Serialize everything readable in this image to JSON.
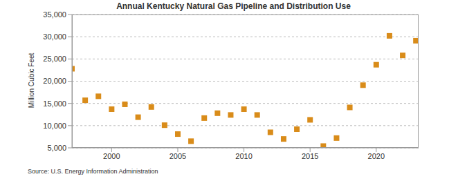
{
  "chart_data": {
    "type": "scatter",
    "title": "Annual Kentucky Natural Gas Pipeline and Distribution Use",
    "y_label": "Million Cubic Feet",
    "source": "Source: U.S. Energy Information Administration",
    "x": [
      1997,
      1998,
      1999,
      2000,
      2001,
      2002,
      2003,
      2004,
      2005,
      2006,
      2007,
      2008,
      2009,
      2010,
      2011,
      2012,
      2013,
      2014,
      2015,
      2016,
      2017,
      2018,
      2019,
      2020,
      2021,
      2022,
      2023
    ],
    "values": [
      22800,
      15700,
      16600,
      13700,
      14800,
      11900,
      14200,
      10100,
      8100,
      6500,
      11700,
      12800,
      12400,
      13700,
      12400,
      8500,
      7000,
      9200,
      11300,
      5400,
      7200,
      14100,
      19100,
      23700,
      30200,
      25800,
      29100
    ],
    "color": "#d98c1a",
    "marker": "square",
    "xlim": [
      1997,
      2023.2
    ],
    "xticks": [
      2000,
      2005,
      2010,
      2015,
      2020
    ],
    "ylim": [
      5000,
      35000
    ],
    "yticks": [
      {
        "value": 5000,
        "label": "5,000"
      },
      {
        "value": 10000,
        "label": "10,000"
      },
      {
        "value": 15000,
        "label": "15,000"
      },
      {
        "value": 20000,
        "label": "20,000"
      },
      {
        "value": 25000,
        "label": "25,000"
      },
      {
        "value": 30000,
        "label": "30,000"
      },
      {
        "value": 35000,
        "label": "35,000"
      }
    ],
    "grid": true
  }
}
